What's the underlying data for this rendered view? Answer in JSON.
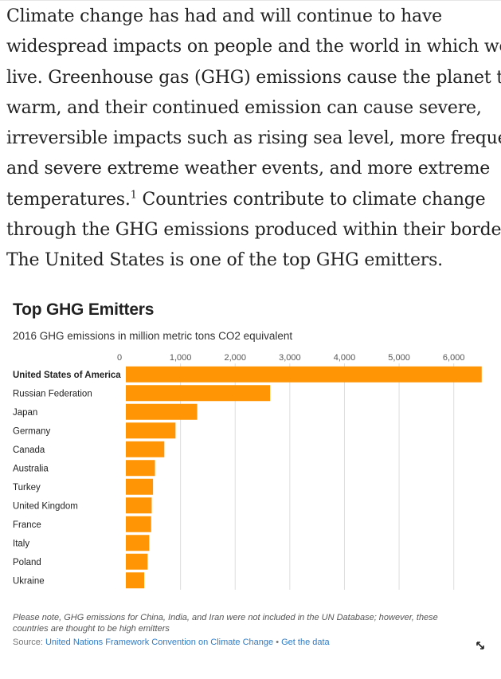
{
  "intro": {
    "lines": [
      "Climate change has had and will continue to have",
      "widespread impacts on people and the world in which we",
      "live.  Greenhouse gas (GHG) emissions cause the planet to",
      "warm, and their continued emission can cause severe,",
      "irreversible impacts such as rising sea level, more frequent",
      "and severe extreme weather events, and more extreme"
    ],
    "line7_text": "temperatures.",
    "footnote_ref": "1",
    "line7_rest": "  Countries contribute to climate change",
    "line8": "through the GHG emissions produced within their borders.",
    "line9": "The United States is one of the top GHG emitters."
  },
  "chart": {
    "note": "Please note, GHG emissions for China, India, and Iran were not included in the UN Database; however, these countries are thought to be high emitters",
    "source_label": "Source:",
    "source_link": "United Nations Framework Convention on Climate Change",
    "separator": "•",
    "data_link": "Get the data",
    "bar_color": "#ff9505",
    "expand_icon": "expand-icon"
  },
  "chart_data": {
    "type": "bar",
    "orientation": "horizontal",
    "title": "Top GHG Emitters",
    "subtitle": "2016 GHG emissions in million metric tons CO2 equivalent",
    "categories": [
      "United States of America",
      "Russian Federation",
      "Japan",
      "Germany",
      "Canada",
      "Australia",
      "Turkey",
      "United Kingdom",
      "France",
      "Italy",
      "Poland",
      "Ukraine"
    ],
    "values": [
      6511,
      2640,
      1305,
      909,
      704,
      533,
      497,
      473,
      463,
      428,
      398,
      336
    ],
    "xlim": [
      0,
      6500
    ],
    "ticks": [
      0,
      1000,
      2000,
      3000,
      4000,
      5000,
      6000
    ],
    "tick_labels": [
      "0",
      "1,000",
      "2,000",
      "3,000",
      "4,000",
      "5,000",
      "6,000"
    ],
    "highlighted_category": "United States of America",
    "grid": true,
    "legend": "none"
  }
}
